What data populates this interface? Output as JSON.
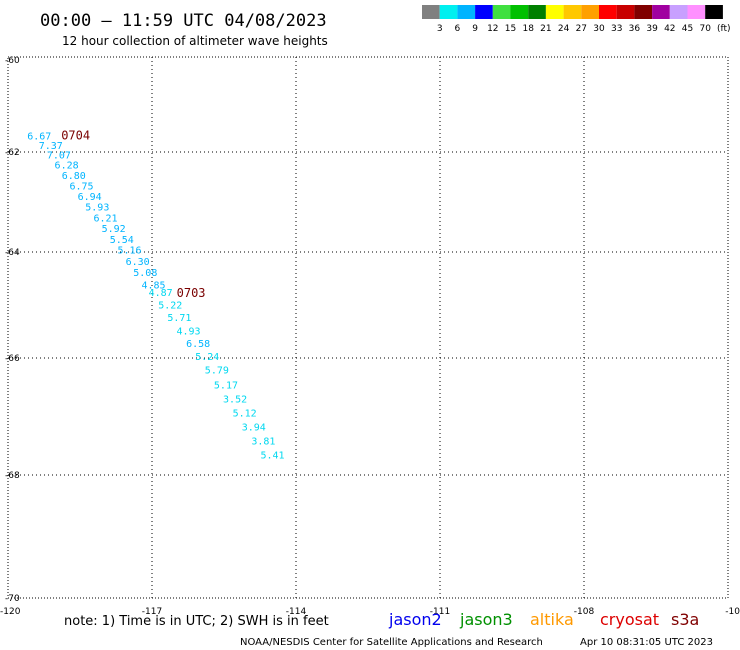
{
  "header": {
    "title": "00:00 – 11:59 UTC 04/08/2023",
    "subtitle": "12 hour collection of altimeter wave heights"
  },
  "color_scale": {
    "labels": [
      "3",
      "6",
      "9",
      "12",
      "15",
      "18",
      "21",
      "24",
      "27",
      "30",
      "33",
      "36",
      "39",
      "42",
      "45",
      "70"
    ],
    "unit": "(ft)",
    "colors": [
      "#808080",
      "#00f0f0",
      "#00b4ff",
      "#0000ff",
      "#40e040",
      "#00c000",
      "#008000",
      "#ffff00",
      "#ffc800",
      "#ffa000",
      "#ff0000",
      "#c80000",
      "#800000",
      "#a000a0",
      "#c8a0ff",
      "#ff90ff",
      "#000000"
    ]
  },
  "map": {
    "lon_ticks": [
      "-120",
      "-117",
      "-114",
      "-111",
      "-108",
      "-10"
    ],
    "lat_ticks": [
      "-60",
      "-62",
      "-64",
      "-66",
      "-68",
      "-70"
    ]
  },
  "passes": [
    {
      "label": "0704",
      "observations": [
        {
          "lon": -119.6,
          "lat": -61.65,
          "value": "6.67",
          "color": "#00b4ff"
        },
        {
          "lon": -119.36,
          "lat": -61.85,
          "value": "7.37",
          "color": "#00b4ff"
        },
        {
          "lon": -119.19,
          "lat": -62.05,
          "value": "7.07",
          "color": "#00b4ff"
        },
        {
          "lon": -119.03,
          "lat": -62.25,
          "value": "6.28",
          "color": "#00b4ff"
        },
        {
          "lon": -118.88,
          "lat": -62.46,
          "value": "6.80",
          "color": "#00b4ff"
        },
        {
          "lon": -118.72,
          "lat": -62.67,
          "value": "6.75",
          "color": "#00b4ff"
        },
        {
          "lon": -118.55,
          "lat": -62.88,
          "value": "6.94",
          "color": "#00b4ff"
        },
        {
          "lon": -118.39,
          "lat": -63.09,
          "value": "5.93",
          "color": "#00b4ff"
        },
        {
          "lon": -118.22,
          "lat": -63.31,
          "value": "6.21",
          "color": "#00b4ff"
        },
        {
          "lon": -118.05,
          "lat": -63.52,
          "value": "5.92",
          "color": "#00b4ff"
        },
        {
          "lon": -117.88,
          "lat": -63.74,
          "value": "5.54",
          "color": "#00b4ff"
        },
        {
          "lon": -117.72,
          "lat": -63.95,
          "value": "5.16",
          "color": "#00b4ff"
        },
        {
          "lon": -117.55,
          "lat": -64.17,
          "value": "6.30",
          "color": "#00b4ff"
        },
        {
          "lon": -117.39,
          "lat": -64.38,
          "value": "5.08",
          "color": "#00b4ff"
        },
        {
          "lon": -117.22,
          "lat": -64.61,
          "value": "4.85",
          "color": "#00b4ff"
        }
      ]
    },
    {
      "label": "0703",
      "observations": [
        {
          "lon": -117.07,
          "lat": -64.75,
          "value": "4.87",
          "color": "#00d8f0"
        },
        {
          "lon": -116.87,
          "lat": -64.99,
          "value": "5.22",
          "color": "#00d8f0"
        },
        {
          "lon": -116.68,
          "lat": -65.23,
          "value": "5.71",
          "color": "#00d8f0"
        },
        {
          "lon": -116.49,
          "lat": -65.48,
          "value": "4.93",
          "color": "#00d8f0"
        },
        {
          "lon": -116.29,
          "lat": -65.72,
          "value": "6.58",
          "color": "#00b4ff"
        },
        {
          "lon": -116.1,
          "lat": -65.96,
          "value": "5.24",
          "color": "#00d8f0"
        },
        {
          "lon": -115.9,
          "lat": -66.2,
          "value": "5.79",
          "color": "#00d8f0"
        },
        {
          "lon": -115.71,
          "lat": -66.45,
          "value": "5.17",
          "color": "#00d8f0"
        },
        {
          "lon": -115.52,
          "lat": -66.69,
          "value": "3.52",
          "color": "#00d8f0"
        },
        {
          "lon": -115.32,
          "lat": -66.93,
          "value": "5.12",
          "color": "#00d8f0"
        },
        {
          "lon": -115.13,
          "lat": -67.17,
          "value": "3.94",
          "color": "#00d8f0"
        },
        {
          "lon": -114.93,
          "lat": -67.41,
          "value": "3.81",
          "color": "#00d8f0"
        },
        {
          "lon": -114.74,
          "lat": -67.65,
          "value": "5.41",
          "color": "#00d8f0"
        }
      ]
    }
  ],
  "footer": {
    "note": "note: 1) Time is in UTC; 2) SWH is in feet",
    "satellites": [
      {
        "name": "jason2",
        "color": "#0000ee"
      },
      {
        "name": "jason3",
        "color": "#009000"
      },
      {
        "name": "altika",
        "color": "#ff9900"
      },
      {
        "name": "cryosat",
        "color": "#dd0000"
      },
      {
        "name": "s3a",
        "color": "#800000"
      }
    ],
    "credit": "NOAA/NESDIS Center for Satellite Applications and Research",
    "timestamp": "Apr 10 08:31:05 UTC 2023"
  }
}
